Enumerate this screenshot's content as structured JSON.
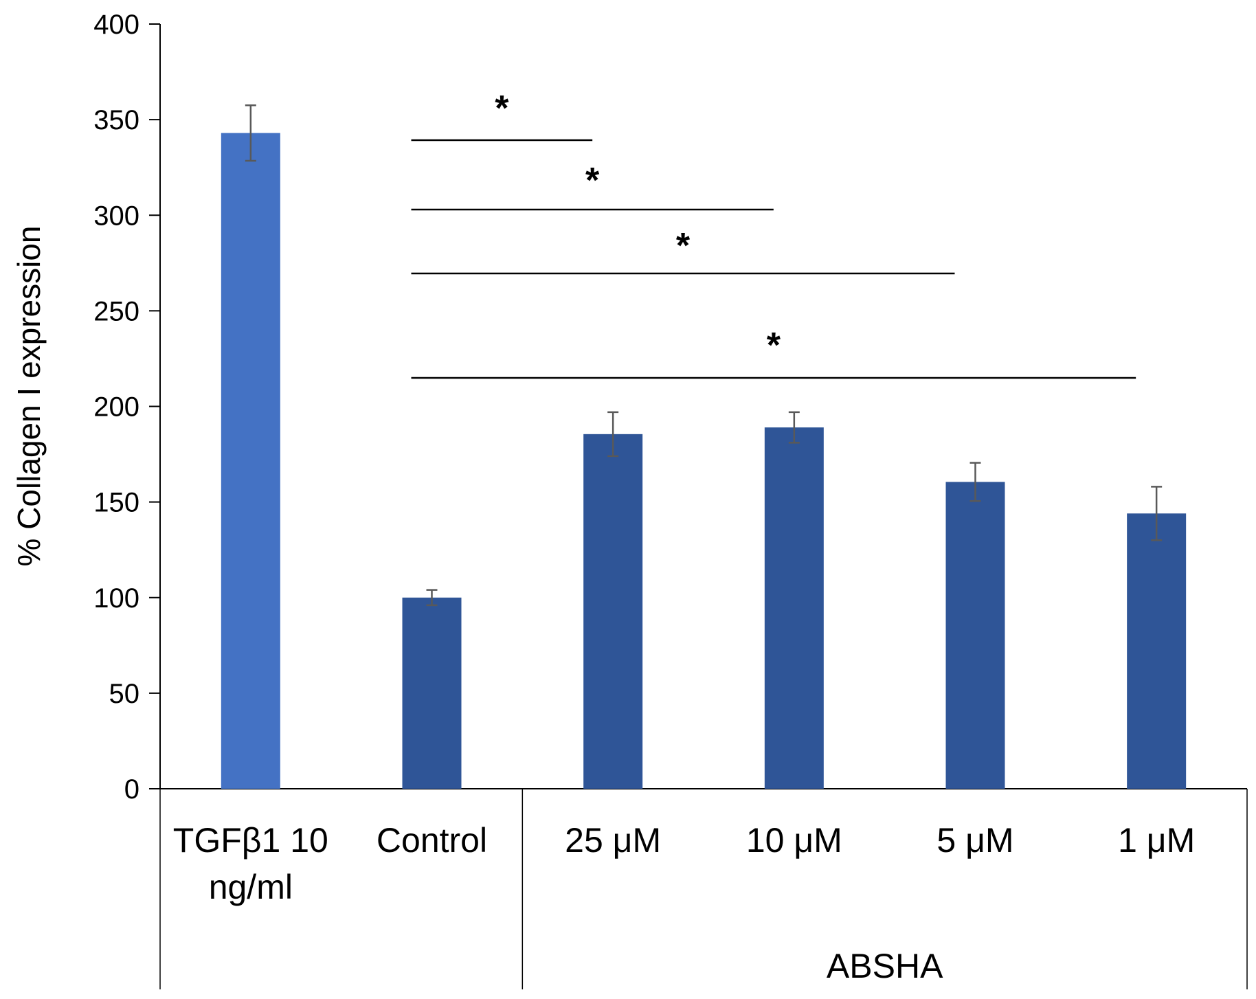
{
  "chart_data": {
    "type": "bar",
    "title": "",
    "xlabel": "",
    "ylabel": "% Collagen I expression",
    "ylim": [
      0,
      400
    ],
    "yticks": [
      0,
      50,
      100,
      150,
      200,
      250,
      300,
      350,
      400
    ],
    "categories": [
      {
        "label_lines": [
          "TGFβ1 10",
          "ng/ml"
        ],
        "value": 343,
        "error": 14.5,
        "color": "#4472C4"
      },
      {
        "label_lines": [
          "Control"
        ],
        "value": 100,
        "error": 4,
        "color": "#2F5597"
      },
      {
        "label_lines": [
          "25 μM"
        ],
        "value": 185.5,
        "error": 11.5,
        "color": "#2F5597"
      },
      {
        "label_lines": [
          "10 μM"
        ],
        "value": 189,
        "error": 8,
        "color": "#2F5597"
      },
      {
        "label_lines": [
          "5 μM"
        ],
        "value": 160.5,
        "error": 10,
        "color": "#2F5597"
      },
      {
        "label_lines": [
          "1 μM"
        ],
        "value": 144,
        "error": 14,
        "color": "#2F5597"
      }
    ],
    "group_label": "ABSHA",
    "significance": [
      {
        "from": 1,
        "to": 2,
        "label": "*"
      },
      {
        "from": 1,
        "to": 3,
        "label": "*"
      },
      {
        "from": 1,
        "to": 4,
        "label": "*"
      },
      {
        "from": 1,
        "to": 5,
        "label": "*"
      }
    ]
  }
}
